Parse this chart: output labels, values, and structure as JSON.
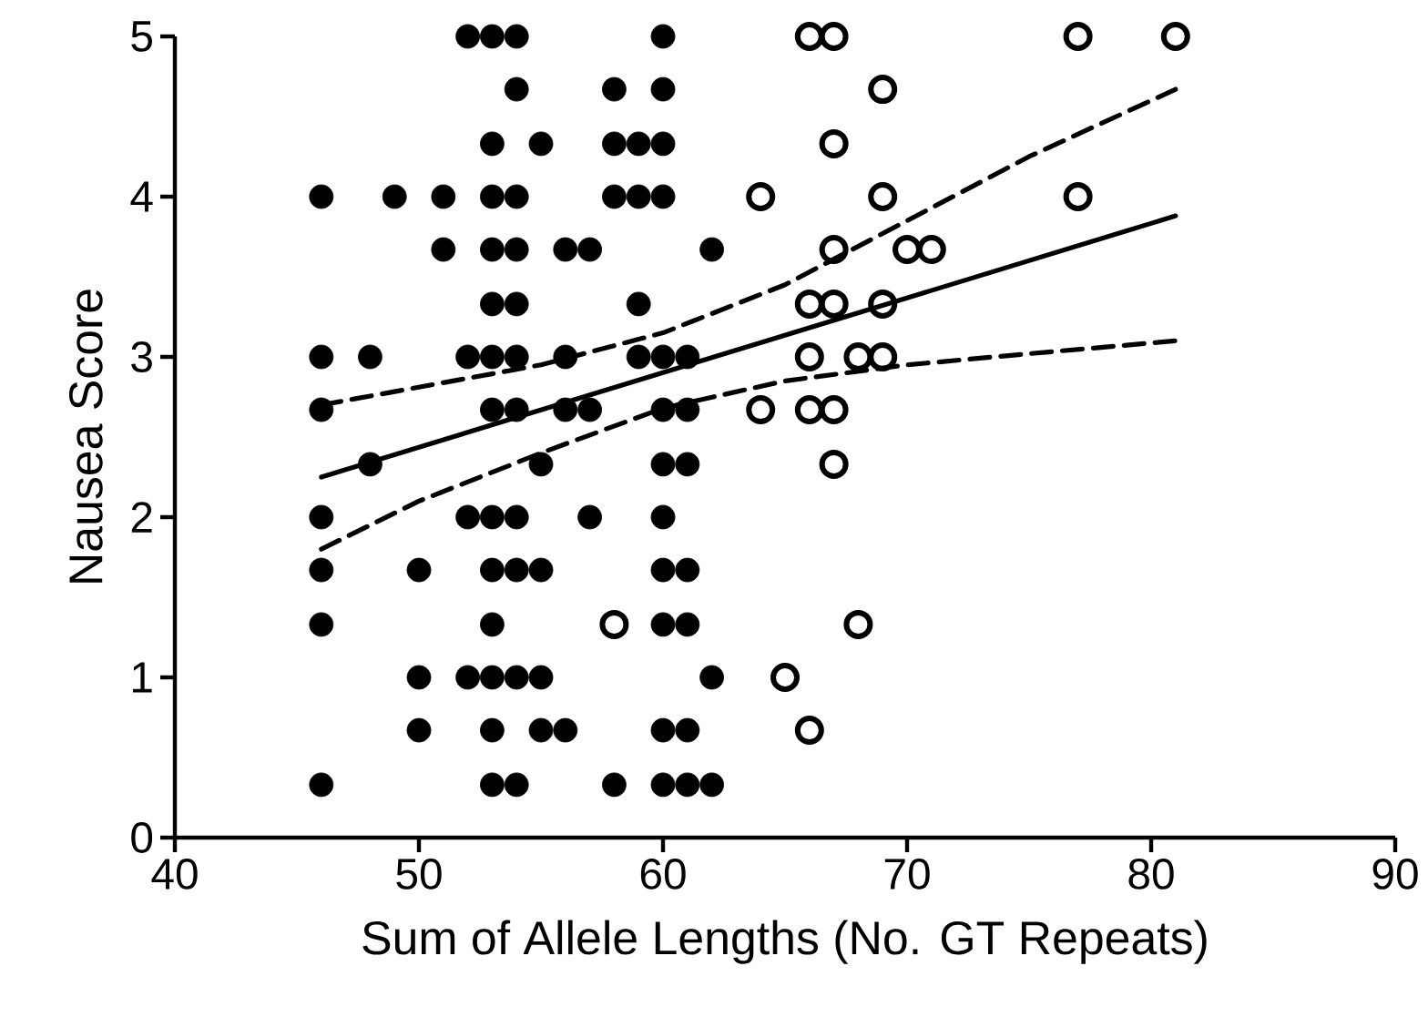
{
  "chart_data": {
    "type": "scatter",
    "xlabel": "Sum of Allele Lengths (No. GT Repeats)",
    "ylabel": "Nausea Score",
    "xlim": [
      40,
      90
    ],
    "xticks": [
      40,
      50,
      60,
      70,
      80,
      90
    ],
    "ylim": [
      0,
      5
    ],
    "yticks": [
      0,
      1,
      2,
      3,
      4,
      5
    ],
    "grid": false,
    "marker": "circle",
    "series": [
      {
        "color": "#000000",
        "x": [
          52,
          53,
          54,
          60,
          54,
          58,
          60,
          53,
          55,
          58,
          59,
          60,
          46,
          49,
          51,
          53,
          54,
          58,
          59,
          60,
          51,
          53,
          54,
          56,
          57,
          62,
          53,
          54,
          59,
          46,
          48,
          52,
          53,
          54,
          56,
          59,
          60,
          61,
          46,
          53,
          54,
          56,
          57,
          60,
          61,
          48,
          55,
          60,
          61,
          46,
          52,
          53,
          54,
          57,
          60,
          46,
          50,
          53,
          54,
          55,
          60,
          61,
          46,
          53,
          60,
          61,
          50,
          52,
          53,
          54,
          55,
          62,
          50,
          53,
          55,
          56,
          60,
          61,
          46,
          53,
          54,
          58,
          60,
          61,
          62
        ],
        "values": [
          5,
          5,
          5,
          5,
          4.67,
          4.67,
          4.67,
          4.33,
          4.33,
          4.33,
          4.33,
          4.33,
          4,
          4,
          4,
          4,
          4,
          4,
          4,
          4,
          3.67,
          3.67,
          3.67,
          3.67,
          3.67,
          3.67,
          3.33,
          3.33,
          3.33,
          3,
          3,
          3,
          3,
          3,
          3,
          3,
          3,
          3,
          2.67,
          2.67,
          2.67,
          2.67,
          2.67,
          2.67,
          2.67,
          2.33,
          2.33,
          2.33,
          2.33,
          2,
          2,
          2,
          2,
          2,
          2,
          1.67,
          1.67,
          1.67,
          1.67,
          1.67,
          1.67,
          1.67,
          1.33,
          1.33,
          1.33,
          1.33,
          1,
          1,
          1,
          1,
          1,
          1,
          0.67,
          0.67,
          0.67,
          0.67,
          0.67,
          0.67,
          0.33,
          0.33,
          0.33,
          0.33,
          0.33,
          0.33,
          0.33
        ]
      },
      {
        "color": "#000000",
        "x": [
          66,
          67,
          77,
          81,
          69,
          67,
          64,
          69,
          77,
          67,
          70,
          71,
          66,
          67,
          69,
          66,
          68,
          69,
          64,
          66,
          67,
          67,
          58,
          68,
          65,
          66
        ],
        "values": [
          5,
          5,
          5,
          5,
          4.67,
          4.33,
          4,
          4,
          4,
          3.67,
          3.67,
          3.67,
          3.33,
          3.33,
          3.33,
          3,
          3,
          3,
          2.67,
          2.67,
          2.67,
          2.33,
          1.33,
          1.33,
          1,
          0.67
        ]
      },
      {
        "type": "line",
        "color": "#000000",
        "line_style": "solid",
        "marker": "none",
        "x": [
          46,
          81
        ],
        "values": [
          2.25,
          3.88
        ]
      },
      {
        "type": "line",
        "color": "#000000",
        "line_style": "dashed",
        "marker": "none",
        "x": [
          46,
          55,
          60,
          65,
          70,
          75,
          81
        ],
        "values": [
          2.7,
          2.95,
          3.15,
          3.45,
          3.85,
          4.25,
          4.67
        ]
      },
      {
        "type": "line",
        "color": "#000000",
        "line_style": "dashed",
        "marker": "none",
        "x": [
          46,
          50,
          55,
          60,
          65,
          70,
          75,
          81
        ],
        "values": [
          1.8,
          2.1,
          2.4,
          2.68,
          2.85,
          2.95,
          3.02,
          3.1
        ]
      }
    ]
  }
}
